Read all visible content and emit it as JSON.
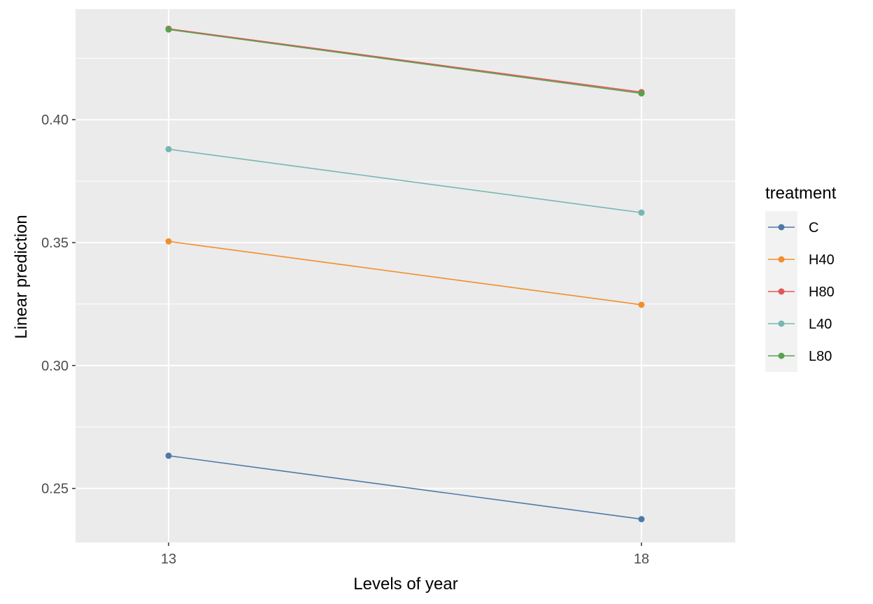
{
  "chart_data": {
    "type": "line",
    "xlabel": "Levels of year",
    "ylabel": "Linear prediction",
    "categories": [
      "13",
      "18"
    ],
    "ylim": [
      0.228,
      0.445
    ],
    "yticks": [
      0.25,
      0.3,
      0.35,
      0.4
    ],
    "ytick_labels": [
      "0.25",
      "0.30",
      "0.35",
      "0.40"
    ],
    "grid": true,
    "legend": {
      "title": "treatment",
      "placement": "right"
    },
    "series": [
      {
        "name": "C",
        "color": "#4e79a7",
        "values": [
          0.2633,
          0.2375
        ]
      },
      {
        "name": "H40",
        "color": "#f28e2b",
        "values": [
          0.3505,
          0.3247
        ]
      },
      {
        "name": "H80",
        "color": "#e15759",
        "values": [
          0.437,
          0.4112
        ]
      },
      {
        "name": "L40",
        "color": "#76b7b2",
        "values": [
          0.388,
          0.3622
        ]
      },
      {
        "name": "L80",
        "color": "#59a14f",
        "values": [
          0.4367,
          0.4107
        ]
      }
    ]
  }
}
